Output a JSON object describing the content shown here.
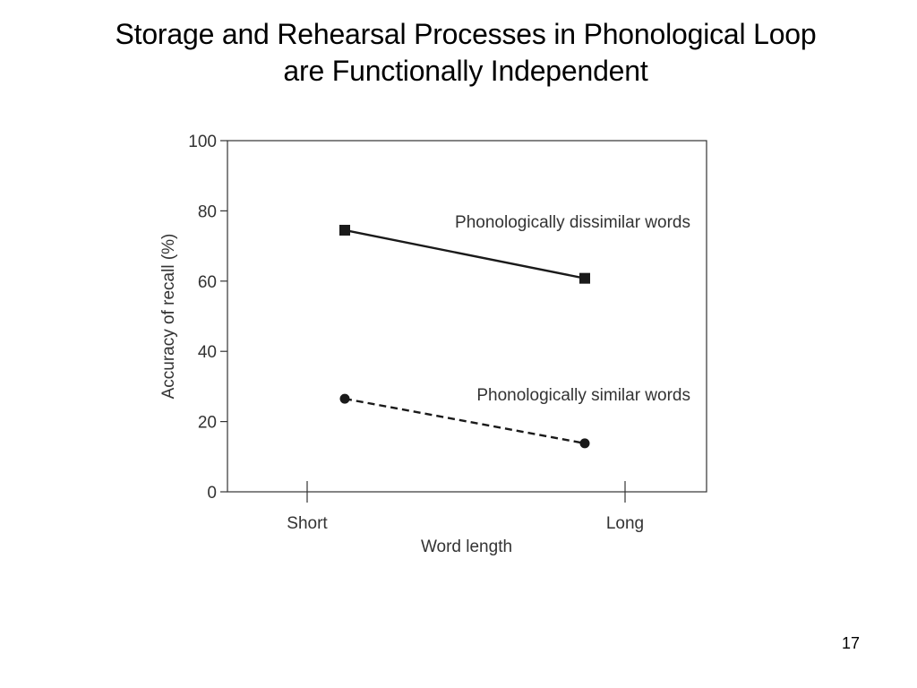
{
  "slide": {
    "title_line1": "Storage and Rehearsal Processes in Phonological Loop",
    "title_line2": "are Functionally Independent",
    "page_number": "17"
  },
  "chart_data": {
    "type": "line",
    "categories": [
      "Short",
      "Long"
    ],
    "xlabel": "Word length",
    "ylabel": "Accuracy of recall (%)",
    "ylim": [
      0,
      100
    ],
    "yticks": [
      0,
      20,
      40,
      60,
      80,
      100
    ],
    "grid": false,
    "legend": "inline labels beside series",
    "series": [
      {
        "name": "Phonologically dissimilar words",
        "values": [
          74.5,
          60.8
        ],
        "marker": "square",
        "line_style": "solid",
        "color": "#1a1a1a"
      },
      {
        "name": "Phonologically similar words",
        "values": [
          26.5,
          13.8
        ],
        "marker": "circle",
        "line_style": "dashed",
        "color": "#1a1a1a"
      }
    ]
  }
}
